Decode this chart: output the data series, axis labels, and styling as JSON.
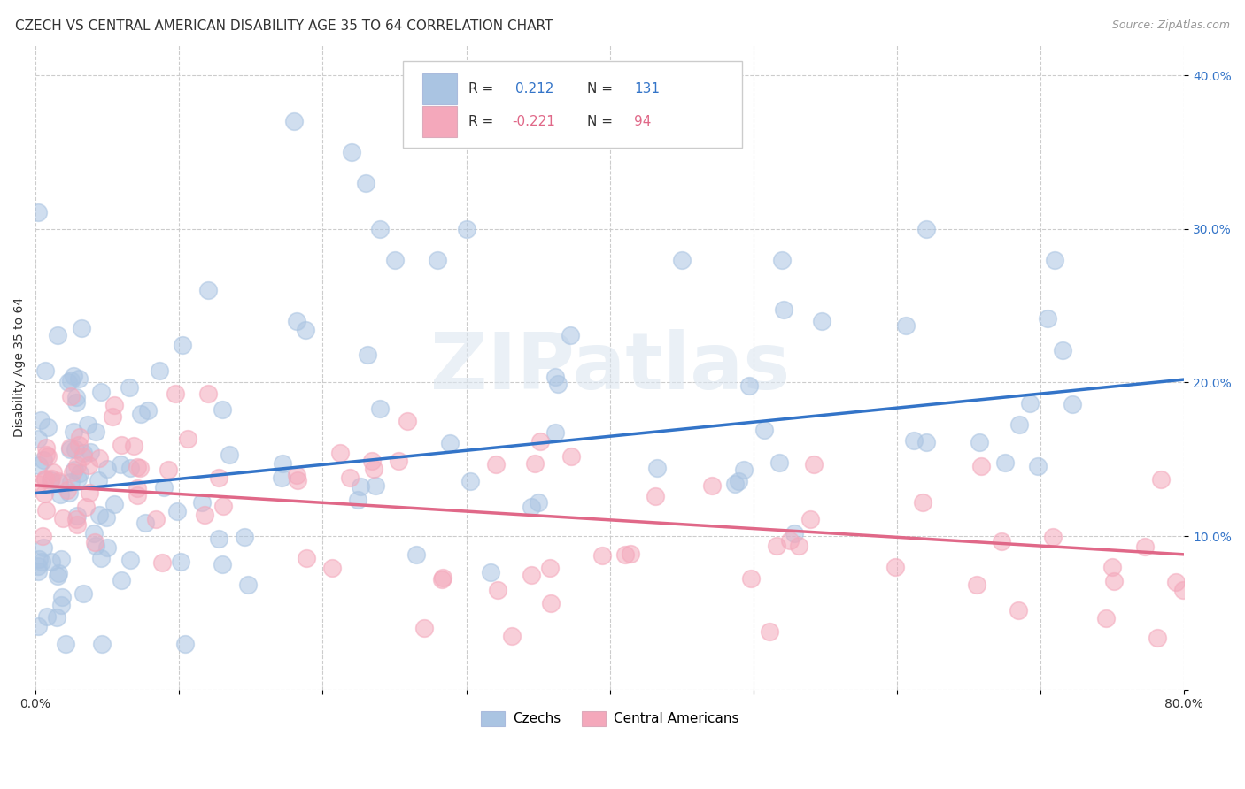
{
  "title": "CZECH VS CENTRAL AMERICAN DISABILITY AGE 35 TO 64 CORRELATION CHART",
  "source": "Source: ZipAtlas.com",
  "ylabel": "Disability Age 35 to 64",
  "xlim": [
    0.0,
    0.8
  ],
  "ylim": [
    0.0,
    0.42
  ],
  "ytick_vals": [
    0.0,
    0.1,
    0.2,
    0.3,
    0.4
  ],
  "ytick_labels": [
    "",
    "10.0%",
    "20.0%",
    "30.0%",
    "40.0%"
  ],
  "xtick_vals": [
    0.0,
    0.1,
    0.2,
    0.3,
    0.4,
    0.5,
    0.6,
    0.7,
    0.8
  ],
  "xtick_labels": [
    "0.0%",
    "",
    "",
    "",
    "",
    "",
    "",
    "",
    "80.0%"
  ],
  "czech_R": 0.212,
  "czech_N": 131,
  "central_R": -0.221,
  "central_N": 94,
  "czech_color": "#aac4e2",
  "central_color": "#f4a8bb",
  "czech_line_color": "#3374c8",
  "central_line_color": "#e06888",
  "watermark": "ZIPatlas",
  "background_color": "#ffffff",
  "grid_color": "#cccccc",
  "title_fontsize": 11,
  "axis_label_fontsize": 10,
  "tick_fontsize": 10,
  "source_text": "Source: ZipAtlas.com",
  "czech_line_start_y": 0.128,
  "czech_line_end_y": 0.202,
  "central_line_start_y": 0.133,
  "central_line_end_y": 0.088,
  "seed": 42
}
